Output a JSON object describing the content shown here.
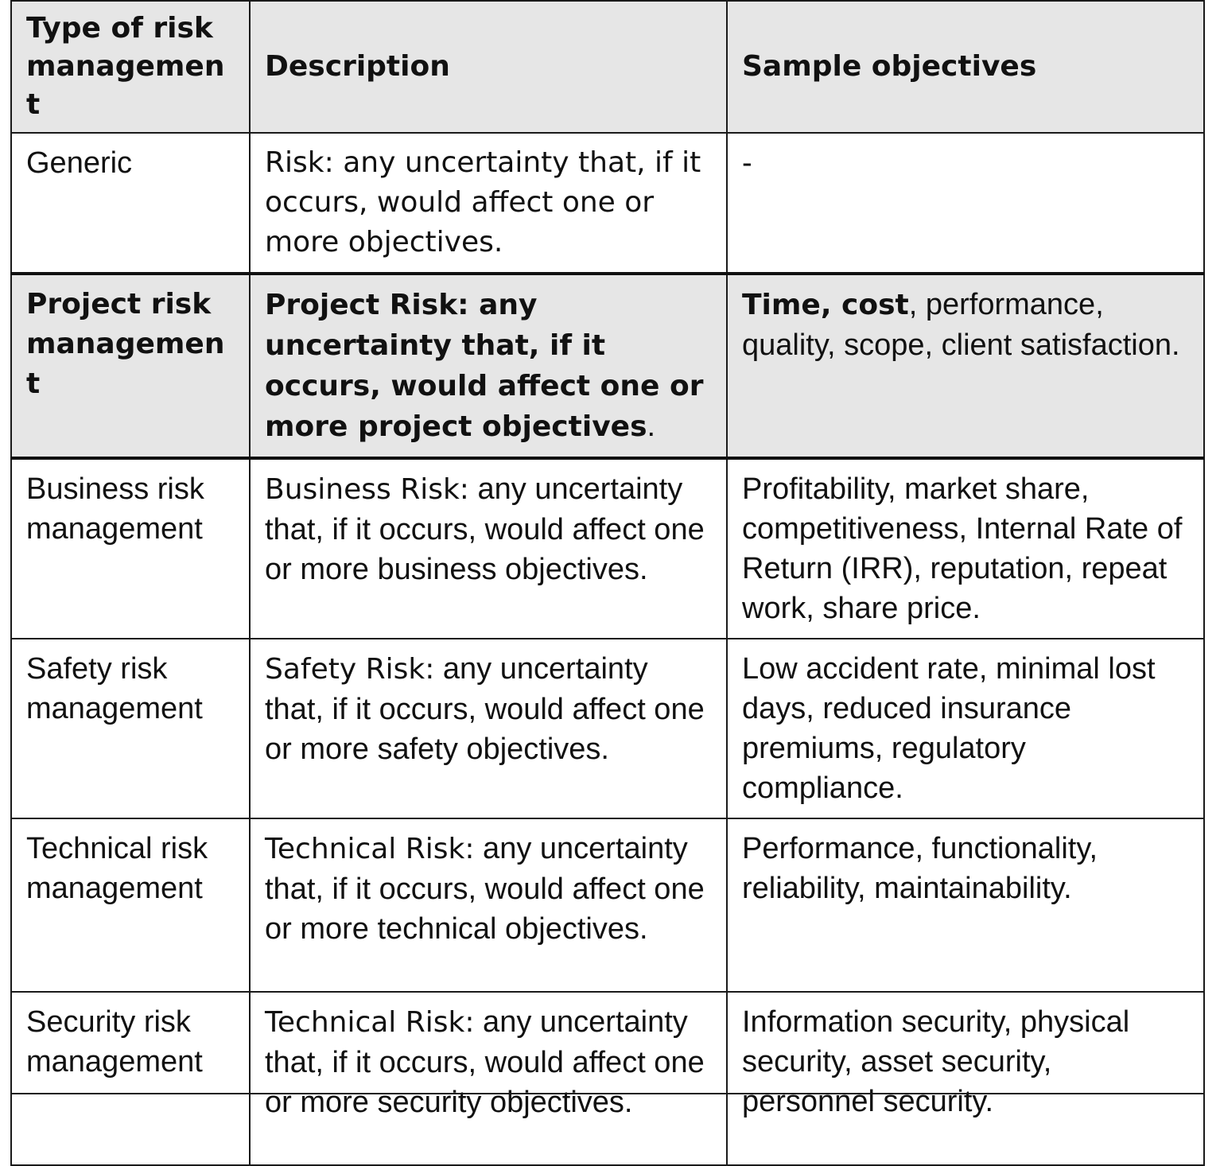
{
  "table": {
    "headers": [
      "Type of risk management",
      "Description",
      "Sample objectives"
    ],
    "rows": [
      {
        "type": "Generic",
        "description": "Risk: any uncertainty that, if it occurs, would affect one or more objectives.",
        "objectives": "-"
      },
      {
        "type": "Project risk management",
        "description_term": "Project Risk:",
        "description_rest": " any uncertainty that, if it occurs, would affect one or more project objectives",
        "description_end": ".",
        "objectives_lead": "Time, cost",
        "objectives_rest": ", performance, quality, scope, client satisfaction."
      },
      {
        "type": "Business risk management",
        "description_term": "Business Risk:",
        "description_rest": " any uncertainty that, if it occurs, would affect one or more business objectives.",
        "objectives": "Profitability, market share, competitiveness, Internal Rate of Return (IRR), reputation, repeat work, share price."
      },
      {
        "type": "Safety risk management",
        "description_term": "Safety Risk:",
        "description_rest": " any uncertainty that, if it occurs, would affect one or more safety objectives.",
        "objectives": "Low accident rate, minimal lost days, reduced insurance premiums, regulatory compliance."
      },
      {
        "type": "Technical risk management",
        "description_term": "Technical Risk:",
        "description_rest": " any uncertainty that, if it occurs, would affect one or more technical objectives.",
        "objectives": "Performance, functionality, reliability, maintainability."
      },
      {
        "type": "Security risk management",
        "description_term": "Technical Risk:",
        "description_rest": " any uncertainty that, if it occurs, would affect one or more security objectives.",
        "objectives": "Information security, physical security, asset security, personnel security."
      }
    ]
  }
}
